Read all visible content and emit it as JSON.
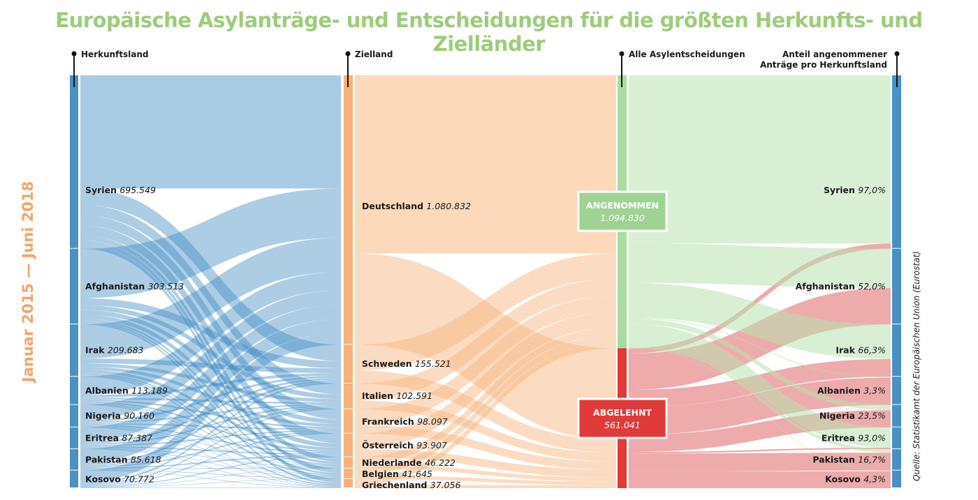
{
  "title": "Europäische Asylanträge- und Entscheidungen für die größten Herkunfts- und Zielländer",
  "period": "Januar 2015 — Juni 2018",
  "source": "Quelle: Statistikamt der Europäischen Union (Eurostat)",
  "headers": {
    "origin": "Herkunftsland",
    "destination": "Zielland",
    "decisions": "Alle Asylentscheidungen",
    "share_line1": "Anteil angenommener",
    "share_line2": "Anträge pro Herkunftsland"
  },
  "chart_data": {
    "type": "sankey",
    "origins": [
      {
        "name": "Syrien",
        "value_label": "695.549",
        "value": 695549,
        "accepted_label": "97,0%",
        "accepted_pct": 97.0
      },
      {
        "name": "Afghanistan",
        "value_label": "303.513",
        "value": 303513,
        "accepted_label": "52,0%",
        "accepted_pct": 52.0
      },
      {
        "name": "Irak",
        "value_label": "209.683",
        "value": 209683,
        "accepted_label": "66,3%",
        "accepted_pct": 66.3
      },
      {
        "name": "Albanien",
        "value_label": "113.189",
        "value": 113189,
        "accepted_label": "3,3%",
        "accepted_pct": 3.3
      },
      {
        "name": "Nigeria",
        "value_label": "90.160",
        "value": 90160,
        "accepted_label": "23,5%",
        "accepted_pct": 23.5
      },
      {
        "name": "Eritrea",
        "value_label": "87.387",
        "value": 87387,
        "accepted_label": "93,0%",
        "accepted_pct": 93.0
      },
      {
        "name": "Pakistan",
        "value_label": "85.618",
        "value": 85618,
        "accepted_label": "16,7%",
        "accepted_pct": 16.7
      },
      {
        "name": "Kosovo",
        "value_label": "70.772",
        "value": 70772,
        "accepted_label": "4,3%",
        "accepted_pct": 4.3
      }
    ],
    "destinations": [
      {
        "name": "Deutschland",
        "value_label": "1.080.832",
        "value": 1080832
      },
      {
        "name": "Schweden",
        "value_label": "155.521",
        "value": 155521
      },
      {
        "name": "Italien",
        "value_label": "102.591",
        "value": 102591
      },
      {
        "name": "Frankreich",
        "value_label": "98.097",
        "value": 98097
      },
      {
        "name": "Österreich",
        "value_label": "93.907",
        "value": 93907
      },
      {
        "name": "Niederlande",
        "value_label": "46.222",
        "value": 46222
      },
      {
        "name": "Belgien",
        "value_label": "41.645",
        "value": 41645
      },
      {
        "name": "Griechenland",
        "value_label": "37.056",
        "value": 37056
      }
    ],
    "decisions": [
      {
        "name": "ANGENOMMEN",
        "value_label": "1.094.830",
        "value": 1094830
      },
      {
        "name": "ABGELEHNT",
        "value_label": "561.041",
        "value": 561041
      }
    ],
    "colors": {
      "origin": "#4a90c4",
      "origin_flow": "#a9cce4",
      "destination": "#f6b27a",
      "destination_flow": "#fdd9bb",
      "accepted": "#a8dca0",
      "accepted_flow": "#d9f0d4",
      "rejected": "#e03a3a",
      "rejected_flow": "#eba0a0",
      "title": "#9ccc7c",
      "period": "#f3a46f"
    }
  }
}
